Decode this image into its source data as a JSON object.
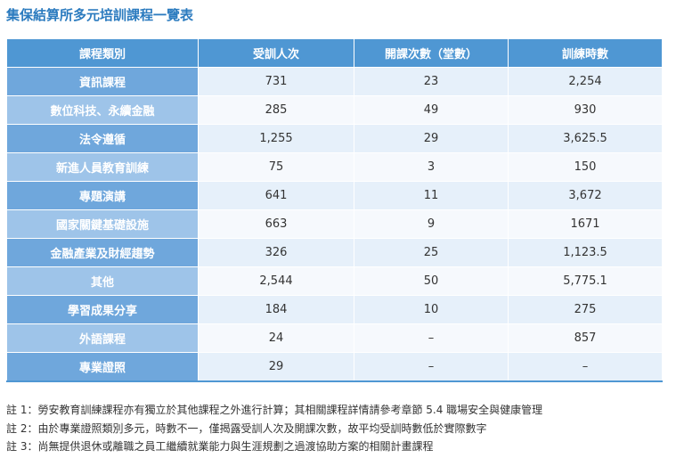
{
  "header": {
    "title": "集保結算所多元培訓課程一覽表"
  },
  "table": {
    "columns": [
      "課程類別",
      "受訓人次",
      "開課次數（堂數）",
      "訓練時數"
    ],
    "rows": [
      [
        "資訊課程",
        "731",
        "23",
        "2,254"
      ],
      [
        "數位科技、永續金融",
        "285",
        "49",
        "930"
      ],
      [
        "法令遵循",
        "1,255",
        "29",
        "3,625.5"
      ],
      [
        "新進人員教育訓練",
        "75",
        "3",
        "150"
      ],
      [
        "專題演講",
        "641",
        "11",
        "3,672"
      ],
      [
        "國家關鍵基礎設施",
        "663",
        "9",
        "1671"
      ],
      [
        "金融產業及財經趨勢",
        "326",
        "25",
        "1,123.5"
      ],
      [
        "其他",
        "2,544",
        "50",
        "5,775.1"
      ],
      [
        "學習成果分享",
        "184",
        "10",
        "275"
      ],
      [
        "外語課程",
        "24",
        "–",
        "857"
      ],
      [
        "專業證照",
        "29",
        "–",
        "–"
      ]
    ]
  },
  "notes": [
    "註 1：勞安教育訓練課程亦有獨立於其他課程之外進行計算；其相關課程詳情請參考章節 5.4 職場安全與健康管理",
    "註 2：由於專業證照類別多元，時數不一，僅揭露受訓人次及開課次數，故平均受訓時數低於實際數字",
    "註 3：尚無提供退休或離職之員工繼續就業能力與生涯規劃之過渡協助方案的相關計畫課程"
  ]
}
